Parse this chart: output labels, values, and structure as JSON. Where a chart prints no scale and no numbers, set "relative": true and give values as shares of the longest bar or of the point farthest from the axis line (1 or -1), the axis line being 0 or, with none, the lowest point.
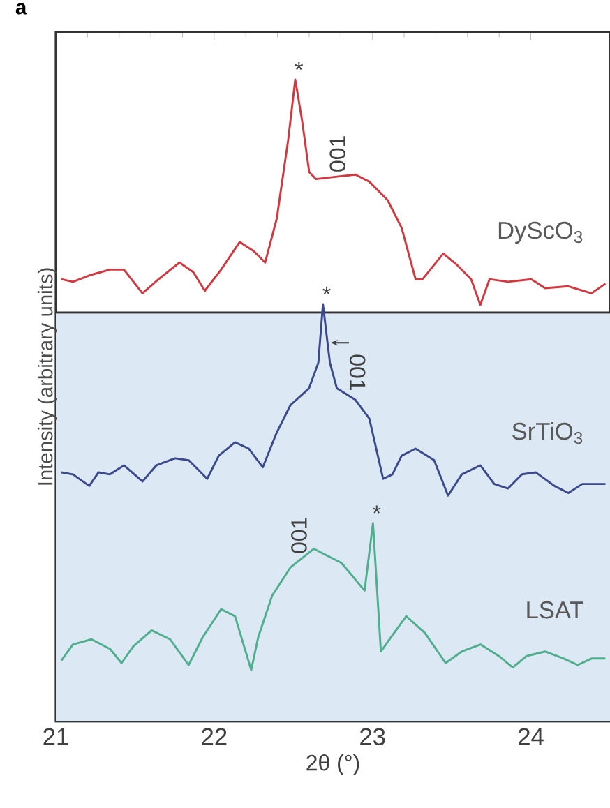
{
  "chart_data": {
    "type": "line",
    "title": "a",
    "xlabel": "2θ (°)",
    "ylabel": "Intensity (arbitrary units)",
    "relative": true,
    "xlim": [
      21,
      24.5
    ],
    "xticks": [
      21,
      22,
      23,
      24
    ],
    "bands": [
      {
        "axis": "y",
        "from": 0,
        "to": 0.637,
        "color": "#dde8f5"
      }
    ],
    "ref_lines": [
      {
        "axis": "y",
        "value": 0.637,
        "color": "#333333"
      }
    ],
    "series": [
      {
        "name": "DyScO$_{3}$",
        "color": "#d0393f",
        "x": [
          21.035,
          21.108,
          21.225,
          21.342,
          21.43,
          21.547,
          21.649,
          21.781,
          21.868,
          21.941,
          22.044,
          22.161,
          22.249,
          22.322,
          22.395,
          22.468,
          22.512,
          22.556,
          22.6,
          22.643,
          22.746,
          22.892,
          22.98,
          23.096,
          23.184,
          23.272,
          23.316,
          23.447,
          23.535,
          23.623,
          23.681,
          23.739,
          23.856,
          24.003,
          24.09,
          24.237,
          24.383,
          24.471
        ],
        "values": [
          0.689,
          0.685,
          0.696,
          0.704,
          0.704,
          0.667,
          0.689,
          0.715,
          0.7,
          0.671,
          0.704,
          0.747,
          0.733,
          0.715,
          0.783,
          0.907,
          1.0,
          0.935,
          0.856,
          0.845,
          0.848,
          0.852,
          0.841,
          0.812,
          0.769,
          0.689,
          0.689,
          0.729,
          0.711,
          0.689,
          0.649,
          0.689,
          0.685,
          0.689,
          0.675,
          0.678,
          0.667,
          0.682
        ]
      },
      {
        "name": "SrTiO$_{3}$",
        "color": "#3b4a8c",
        "x": [
          21.035,
          21.108,
          21.211,
          21.269,
          21.342,
          21.43,
          21.547,
          21.635,
          21.752,
          21.839,
          21.956,
          22.029,
          22.132,
          22.219,
          22.307,
          22.395,
          22.482,
          22.599,
          22.658,
          22.687,
          22.731,
          22.775,
          22.892,
          22.98,
          23.067,
          23.126,
          23.184,
          23.272,
          23.389,
          23.477,
          23.564,
          23.681,
          23.769,
          23.856,
          23.944,
          24.032,
          24.149,
          24.237,
          24.325,
          24.471
        ],
        "values": [
          0.388,
          0.385,
          0.367,
          0.388,
          0.385,
          0.399,
          0.374,
          0.399,
          0.41,
          0.407,
          0.378,
          0.414,
          0.435,
          0.425,
          0.396,
          0.45,
          0.493,
          0.519,
          0.559,
          0.65,
          0.559,
          0.519,
          0.501,
          0.472,
          0.378,
          0.385,
          0.414,
          0.425,
          0.407,
          0.352,
          0.385,
          0.399,
          0.37,
          0.363,
          0.385,
          0.388,
          0.367,
          0.356,
          0.37,
          0.37
        ]
      },
      {
        "name": "LSAT",
        "color": "#4fae8c",
        "x": [
          21.035,
          21.108,
          21.225,
          21.342,
          21.415,
          21.489,
          21.605,
          21.722,
          21.839,
          21.927,
          22.044,
          22.132,
          22.234,
          22.278,
          22.366,
          22.482,
          22.629,
          22.804,
          22.95,
          23.003,
          23.053,
          23.096,
          23.213,
          23.331,
          23.462,
          23.564,
          23.682,
          23.798,
          23.886,
          23.974,
          24.09,
          24.208,
          24.296,
          24.383,
          24.471
        ],
        "values": [
          0.095,
          0.12,
          0.128,
          0.113,
          0.091,
          0.117,
          0.142,
          0.128,
          0.088,
          0.131,
          0.175,
          0.164,
          0.08,
          0.131,
          0.196,
          0.24,
          0.269,
          0.247,
          0.204,
          0.309,
          0.109,
          0.124,
          0.164,
          0.138,
          0.091,
          0.109,
          0.12,
          0.102,
          0.084,
          0.102,
          0.109,
          0.098,
          0.088,
          0.098,
          0.098
        ]
      }
    ],
    "annotations": [
      {
        "text": "*",
        "x": 22.512,
        "y": 1.0
      },
      {
        "text": "001",
        "x": 22.85,
        "y": 0.852
      },
      {
        "text": "*",
        "x": 22.687,
        "y": 0.65
      },
      {
        "text": "001",
        "x": 22.687,
        "y": 0.59
      },
      {
        "text": "001",
        "x": 22.63,
        "y": 0.269
      },
      {
        "text": "*",
        "x": 23.003,
        "y": 0.309
      }
    ]
  }
}
